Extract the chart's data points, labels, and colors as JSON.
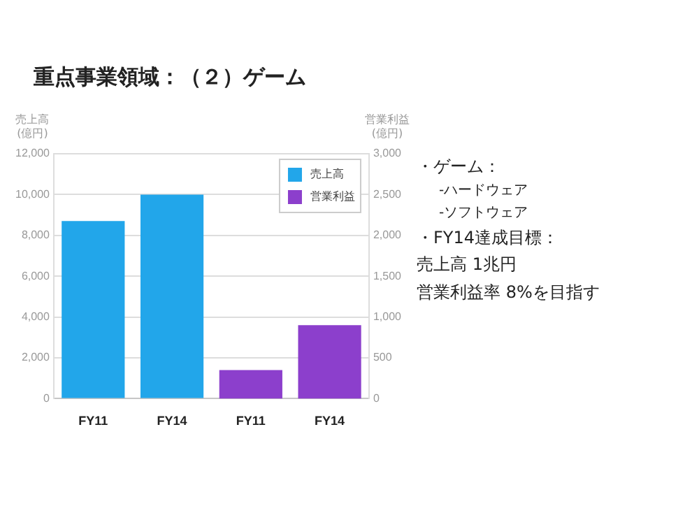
{
  "chart_data": {
    "type": "bar",
    "title": "重点事業領域：（２）ゲーム",
    "ylabel": "売上高\n(億円)",
    "y2label": "営業利益\n(億円)",
    "categories": [
      "FY11",
      "FY14",
      "FY11",
      "FY14"
    ],
    "series": [
      {
        "name": "売上高",
        "color": "#22a6ea",
        "values": [
          8700,
          10000,
          null,
          null
        ]
      },
      {
        "name": "営業利益",
        "color": "#8c3fcc",
        "values": [
          null,
          null,
          350,
          900
        ],
        "axis": "y2"
      }
    ],
    "ylim": [
      0,
      12000
    ],
    "yticks": [
      0,
      {
        "value": 2000,
        "label": "2,000"
      },
      {
        "value": 4000,
        "label": "4,000"
      },
      {
        "value": 6000,
        "label": "6,000"
      },
      {
        "value": 8000,
        "label": "8,000"
      },
      {
        "value": 10000,
        "label": "10,000"
      },
      {
        "value": 12000,
        "label": "12,000"
      }
    ],
    "y2lim": [
      0,
      3000
    ],
    "y2ticks": [
      0,
      500,
      {
        "value": 1000,
        "label": "1,000"
      },
      {
        "value": 1500,
        "label": "1,500"
      },
      {
        "value": 2000,
        "label": "2,000"
      },
      {
        "value": 2500,
        "label": "2,500"
      },
      {
        "value": 3000,
        "label": "3,000"
      }
    ],
    "grid": "y",
    "legend": "top right",
    "annotations": [
      "・ゲーム：",
      "-ハードウェア",
      "-ソフトウェア",
      "・FY14達成目標：",
      "売上高 1兆円",
      "営業利益率 8%を目指す"
    ]
  }
}
